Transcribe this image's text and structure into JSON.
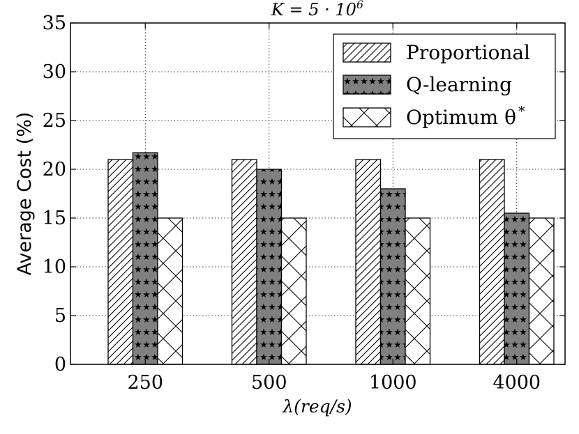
{
  "chart_data": {
    "type": "bar",
    "title": "K = 5 · 10",
    "title_sup": "6",
    "xlabel": "λ(req/s)",
    "ylabel": "Average Cost (%)",
    "categories": [
      "250",
      "500",
      "1000",
      "4000"
    ],
    "ylim": [
      0,
      35
    ],
    "yticks": [
      "0",
      "5",
      "10",
      "15",
      "20",
      "25",
      "30",
      "35"
    ],
    "grid": true,
    "legend_position": "top-right",
    "series": [
      {
        "name": "Proportional",
        "pattern": "diagonal-hatch",
        "color": "#ffffff",
        "values": [
          21,
          21,
          21,
          21
        ]
      },
      {
        "name": "Q-learning",
        "pattern": "stars",
        "color": "#808080",
        "values": [
          21.7,
          20,
          18,
          15.5
        ]
      },
      {
        "name": "Optimum θ",
        "name_sup": "*",
        "pattern": "cross-hatch",
        "color": "#ffffff",
        "values": [
          15,
          15,
          15,
          15
        ]
      }
    ]
  }
}
